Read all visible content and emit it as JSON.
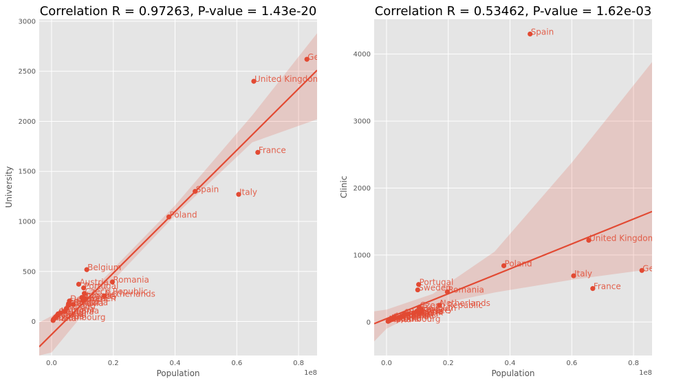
{
  "colors": {
    "point": "#E24A33",
    "band": "#E24A33",
    "panel_bg": "#E5E5E5",
    "grid": "#FFFFFF",
    "tick_text": "#555555"
  },
  "chart_data": [
    {
      "type": "scatter",
      "title": "Correlation R = 0.97263, P-value = 1.43e-20",
      "xlabel": "Population",
      "ylabel": "University",
      "x_scale_label": "1e8",
      "xlim": [
        -0.04,
        0.86
      ],
      "ylim": [
        -340,
        3020
      ],
      "xticks": [
        0.0,
        0.2,
        0.4,
        0.6,
        0.8
      ],
      "xtick_labels": [
        "0.0",
        "0.2",
        "0.4",
        "0.6",
        "0.8"
      ],
      "yticks": [
        0,
        500,
        1000,
        1500,
        2000,
        2500,
        3000
      ],
      "ytick_labels": [
        "0",
        "500",
        "1000",
        "1500",
        "2000",
        "2500",
        "3000"
      ],
      "grid": true,
      "regression": {
        "slope": 3070,
        "intercept": -130
      },
      "band_upper": [
        [
          -0.04,
          -10
        ],
        [
          0.0,
          55
        ],
        [
          0.15,
          370
        ],
        [
          0.4,
          1160
        ],
        [
          0.65,
          2060
        ],
        [
          0.86,
          2880
        ]
      ],
      "band_lower": [
        [
          0.86,
          2020
        ],
        [
          0.65,
          1790
        ],
        [
          0.4,
          1060
        ],
        [
          0.15,
          250
        ],
        [
          0.0,
          -310
        ],
        [
          -0.04,
          -340
        ]
      ],
      "points": [
        {
          "x": 0.827,
          "y": 2620,
          "label": "Germany"
        },
        {
          "x": 0.655,
          "y": 2400,
          "label": "United Kingdom"
        },
        {
          "x": 0.668,
          "y": 1690,
          "label": "France"
        },
        {
          "x": 0.465,
          "y": 1300,
          "label": "Spain"
        },
        {
          "x": 0.606,
          "y": 1270,
          "label": "Italy"
        },
        {
          "x": 0.38,
          "y": 1045,
          "label": "Poland"
        },
        {
          "x": 0.114,
          "y": 518,
          "label": "Belgium"
        },
        {
          "x": 0.197,
          "y": 395,
          "label": "Romania"
        },
        {
          "x": 0.088,
          "y": 372,
          "label": "Austria"
        },
        {
          "x": 0.104,
          "y": 335,
          "label": "Portugal"
        },
        {
          "x": 0.106,
          "y": 280,
          "label": "Czech Republic"
        },
        {
          "x": 0.171,
          "y": 255,
          "label": "Netherlands"
        },
        {
          "x": 0.098,
          "y": 240,
          "label": "Hungary"
        },
        {
          "x": 0.108,
          "y": 230,
          "label": "Greece"
        },
        {
          "x": 0.101,
          "y": 210,
          "label": "Sweden"
        },
        {
          "x": 0.058,
          "y": 205,
          "label": "Denmark"
        },
        {
          "x": 0.055,
          "y": 178,
          "label": "Finland"
        },
        {
          "x": 0.07,
          "y": 170,
          "label": "Bulgaria"
        },
        {
          "x": 0.054,
          "y": 160,
          "label": "Slovakia"
        },
        {
          "x": 0.048,
          "y": 130,
          "label": "Ireland"
        },
        {
          "x": 0.041,
          "y": 100,
          "label": "Croatia"
        },
        {
          "x": 0.028,
          "y": 85,
          "label": "Lithuania"
        },
        {
          "x": 0.021,
          "y": 75,
          "label": "Slovenia"
        },
        {
          "x": 0.019,
          "y": 60,
          "label": "Latvia"
        },
        {
          "x": 0.013,
          "y": 45,
          "label": "Estonia"
        },
        {
          "x": 0.009,
          "y": 30,
          "label": "Cyprus"
        },
        {
          "x": 0.006,
          "y": 20,
          "label": "Luxembourg"
        },
        {
          "x": 0.005,
          "y": 10,
          "label": "Malta"
        }
      ],
      "labels": [
        {
          "x": 0.827,
          "y": 2620,
          "text": "Germany"
        },
        {
          "x": 0.655,
          "y": 2400,
          "text": "United Kingdom"
        },
        {
          "x": 0.668,
          "y": 1690,
          "text": "France"
        },
        {
          "x": 0.465,
          "y": 1300,
          "text": "Spain"
        },
        {
          "x": 0.606,
          "y": 1270,
          "text": "Italy"
        },
        {
          "x": 0.38,
          "y": 1045,
          "text": "Poland"
        },
        {
          "x": 0.114,
          "y": 518,
          "text": "Belgium"
        },
        {
          "x": 0.197,
          "y": 395,
          "text": "Romania"
        },
        {
          "x": 0.088,
          "y": 372,
          "text": "Austria"
        },
        {
          "x": 0.104,
          "y": 335,
          "text": "Portugal"
        },
        {
          "x": 0.106,
          "y": 280,
          "text": "Czech Republic"
        },
        {
          "x": 0.171,
          "y": 255,
          "text": "Netherlands"
        },
        {
          "x": 0.098,
          "y": 240,
          "text": "Hungary"
        },
        {
          "x": 0.108,
          "y": 230,
          "text": "Greece"
        },
        {
          "x": 0.101,
          "y": 210,
          "text": "Sweden"
        },
        {
          "x": 0.058,
          "y": 205,
          "text": "Denmark"
        },
        {
          "x": 0.055,
          "y": 178,
          "text": "Finland"
        },
        {
          "x": 0.07,
          "y": 170,
          "text": "Bulgaria"
        },
        {
          "x": 0.054,
          "y": 160,
          "text": "Slovakia"
        },
        {
          "x": 0.048,
          "y": 130,
          "text": "Ireland"
        },
        {
          "x": 0.041,
          "y": 100,
          "text": "Croatia"
        },
        {
          "x": 0.028,
          "y": 85,
          "text": "Lithuania"
        },
        {
          "x": 0.021,
          "y": 75,
          "text": "Slovenia"
        },
        {
          "x": 0.019,
          "y": 60,
          "text": "Latvia"
        },
        {
          "x": 0.013,
          "y": 45,
          "text": "Estonia"
        },
        {
          "x": 0.009,
          "y": 30,
          "text": "Cyprus"
        },
        {
          "x": 0.006,
          "y": 20,
          "text": "Luxembourg"
        },
        {
          "x": 0.005,
          "y": 10,
          "text": "Malta"
        }
      ]
    },
    {
      "type": "scatter",
      "title": "Correlation R = 0.53462, P-value = 1.62e-03",
      "xlabel": "Population",
      "ylabel": "Clinic",
      "x_scale_label": "1e8",
      "xlim": [
        -0.04,
        0.86
      ],
      "ylim": [
        -500,
        4520
      ],
      "xticks": [
        0.0,
        0.2,
        0.4,
        0.6,
        0.8
      ],
      "xtick_labels": [
        "0.0",
        "0.2",
        "0.4",
        "0.6",
        "0.8"
      ],
      "yticks": [
        0,
        1000,
        2000,
        3000,
        4000
      ],
      "ytick_labels": [
        "0",
        "1000",
        "2000",
        "3000",
        "4000"
      ],
      "grid": true,
      "regression": {
        "slope": 1860,
        "intercept": 50
      },
      "band_upper": [
        [
          -0.04,
          160
        ],
        [
          0.0,
          185
        ],
        [
          0.15,
          420
        ],
        [
          0.35,
          1050
        ],
        [
          0.6,
          2380
        ],
        [
          0.86,
          3880
        ]
      ],
      "band_lower": [
        [
          0.86,
          790
        ],
        [
          0.6,
          630
        ],
        [
          0.35,
          440
        ],
        [
          0.15,
          250
        ],
        [
          0.0,
          -100
        ],
        [
          -0.04,
          -290
        ]
      ],
      "points": [
        {
          "x": 0.465,
          "y": 4300,
          "label": "Spain"
        },
        {
          "x": 0.655,
          "y": 1220,
          "label": "United Kingdom"
        },
        {
          "x": 0.38,
          "y": 840,
          "label": "Poland"
        },
        {
          "x": 0.827,
          "y": 770,
          "label": "Germany"
        },
        {
          "x": 0.606,
          "y": 690,
          "label": "Italy"
        },
        {
          "x": 0.104,
          "y": 560,
          "label": "Portugal"
        },
        {
          "x": 0.668,
          "y": 500,
          "label": "France"
        },
        {
          "x": 0.101,
          "y": 480,
          "label": "Sweden"
        },
        {
          "x": 0.197,
          "y": 450,
          "label": "Romania"
        },
        {
          "x": 0.171,
          "y": 250,
          "label": "Netherlands"
        },
        {
          "x": 0.106,
          "y": 220,
          "label": "Czech Republic"
        },
        {
          "x": 0.114,
          "y": 180,
          "label": "Belgium"
        },
        {
          "x": 0.098,
          "y": 160,
          "label": "Hungary"
        },
        {
          "x": 0.108,
          "y": 140,
          "label": "Greece"
        },
        {
          "x": 0.088,
          "y": 130,
          "label": "Austria"
        },
        {
          "x": 0.07,
          "y": 120,
          "label": "Bulgaria"
        },
        {
          "x": 0.058,
          "y": 110,
          "label": "Denmark"
        },
        {
          "x": 0.055,
          "y": 100,
          "label": "Finland"
        },
        {
          "x": 0.054,
          "y": 90,
          "label": "Slovakia"
        },
        {
          "x": 0.048,
          "y": 80,
          "label": "Ireland"
        },
        {
          "x": 0.041,
          "y": 70,
          "label": "Croatia"
        },
        {
          "x": 0.028,
          "y": 60,
          "label": "Lithuania"
        },
        {
          "x": 0.021,
          "y": 50,
          "label": "Slovenia"
        },
        {
          "x": 0.019,
          "y": 40,
          "label": "Latvia"
        },
        {
          "x": 0.013,
          "y": 30,
          "label": "Estonia"
        },
        {
          "x": 0.009,
          "y": 20,
          "label": "Cyprus"
        },
        {
          "x": 0.006,
          "y": 15,
          "label": "Luxembourg"
        },
        {
          "x": 0.005,
          "y": 10,
          "label": "Malta"
        }
      ],
      "labels": [
        {
          "x": 0.465,
          "y": 4300,
          "text": "Spain"
        },
        {
          "x": 0.655,
          "y": 1220,
          "text": "United Kingdom"
        },
        {
          "x": 0.38,
          "y": 840,
          "text": "Poland"
        },
        {
          "x": 0.827,
          "y": 770,
          "text": "Germany"
        },
        {
          "x": 0.606,
          "y": 690,
          "text": "Italy"
        },
        {
          "x": 0.104,
          "y": 560,
          "text": "Portugal"
        },
        {
          "x": 0.668,
          "y": 500,
          "text": "France"
        },
        {
          "x": 0.101,
          "y": 480,
          "text": "Sweden"
        },
        {
          "x": 0.197,
          "y": 450,
          "text": "Romania"
        },
        {
          "x": 0.171,
          "y": 250,
          "text": "Netherlands"
        },
        {
          "x": 0.106,
          "y": 220,
          "text": "Czech Republic"
        },
        {
          "x": 0.114,
          "y": 180,
          "text": "Belgium"
        },
        {
          "x": 0.098,
          "y": 160,
          "text": "Hungary"
        },
        {
          "x": 0.108,
          "y": 140,
          "text": "Greece"
        },
        {
          "x": 0.088,
          "y": 130,
          "text": "Austria"
        },
        {
          "x": 0.07,
          "y": 120,
          "text": "Bulgaria"
        },
        {
          "x": 0.058,
          "y": 110,
          "text": "Denmark"
        },
        {
          "x": 0.055,
          "y": 100,
          "text": "Finland"
        },
        {
          "x": 0.054,
          "y": 90,
          "text": "Slovakia"
        },
        {
          "x": 0.048,
          "y": 80,
          "text": "Ireland"
        },
        {
          "x": 0.041,
          "y": 70,
          "text": "Croatia"
        },
        {
          "x": 0.028,
          "y": 60,
          "text": "Lithuania"
        },
        {
          "x": 0.021,
          "y": 50,
          "text": "Slovenia"
        },
        {
          "x": 0.019,
          "y": 40,
          "text": "Latvia"
        },
        {
          "x": 0.013,
          "y": 30,
          "text": "Estonia"
        },
        {
          "x": 0.009,
          "y": 20,
          "text": "Cyprus"
        },
        {
          "x": 0.006,
          "y": 15,
          "text": "Luxembourg"
        },
        {
          "x": 0.005,
          "y": 10,
          "text": "Malta"
        }
      ]
    }
  ]
}
